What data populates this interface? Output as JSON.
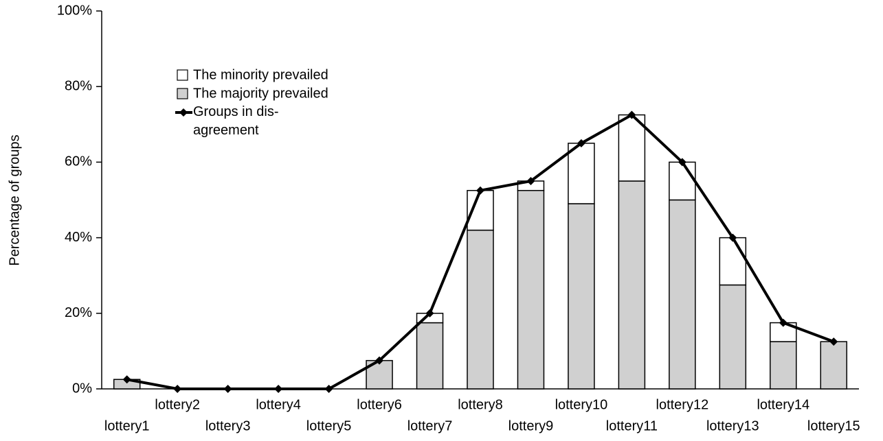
{
  "chart_data": {
    "type": "stacked_bar_line",
    "y_label": "Percentage of groups",
    "categories": [
      "lottery1",
      "lottery2",
      "lottery3",
      "lottery4",
      "lottery5",
      "lottery6",
      "lottery7",
      "lottery8",
      "lottery9",
      "lottery10",
      "lottery11",
      "lottery12",
      "lottery13",
      "lottery14",
      "lottery15"
    ],
    "series": [
      {
        "name": "The majority prevailed",
        "color": "#d0d0d0",
        "kind": "bar",
        "values": [
          2.5,
          0,
          0,
          0,
          0,
          7.5,
          17.5,
          42,
          52.5,
          49,
          55,
          50,
          27.5,
          12.5,
          12.5
        ]
      },
      {
        "name": "The minority prevailed",
        "color": "#ffffff",
        "kind": "bar",
        "values": [
          0,
          0,
          0,
          0,
          0,
          0,
          2.5,
          10.5,
          2.5,
          16,
          17.5,
          10,
          12.5,
          5,
          0
        ]
      },
      {
        "name": "Groups in dis-\nagreement",
        "color": "#000000",
        "kind": "line",
        "values": [
          2.5,
          0,
          0,
          0,
          0,
          7.5,
          20,
          52.5,
          55,
          65,
          72.5,
          60,
          40,
          17.5,
          12.5
        ]
      }
    ],
    "ylim": [
      0,
      100
    ],
    "yticks": [
      {
        "value": 0,
        "label": "0%"
      },
      {
        "value": 20,
        "label": "20%"
      },
      {
        "value": 40,
        "label": "40%"
      },
      {
        "value": 60,
        "label": "60%"
      },
      {
        "value": 80,
        "label": "80%"
      },
      {
        "value": 100,
        "label": "100%"
      }
    ]
  }
}
